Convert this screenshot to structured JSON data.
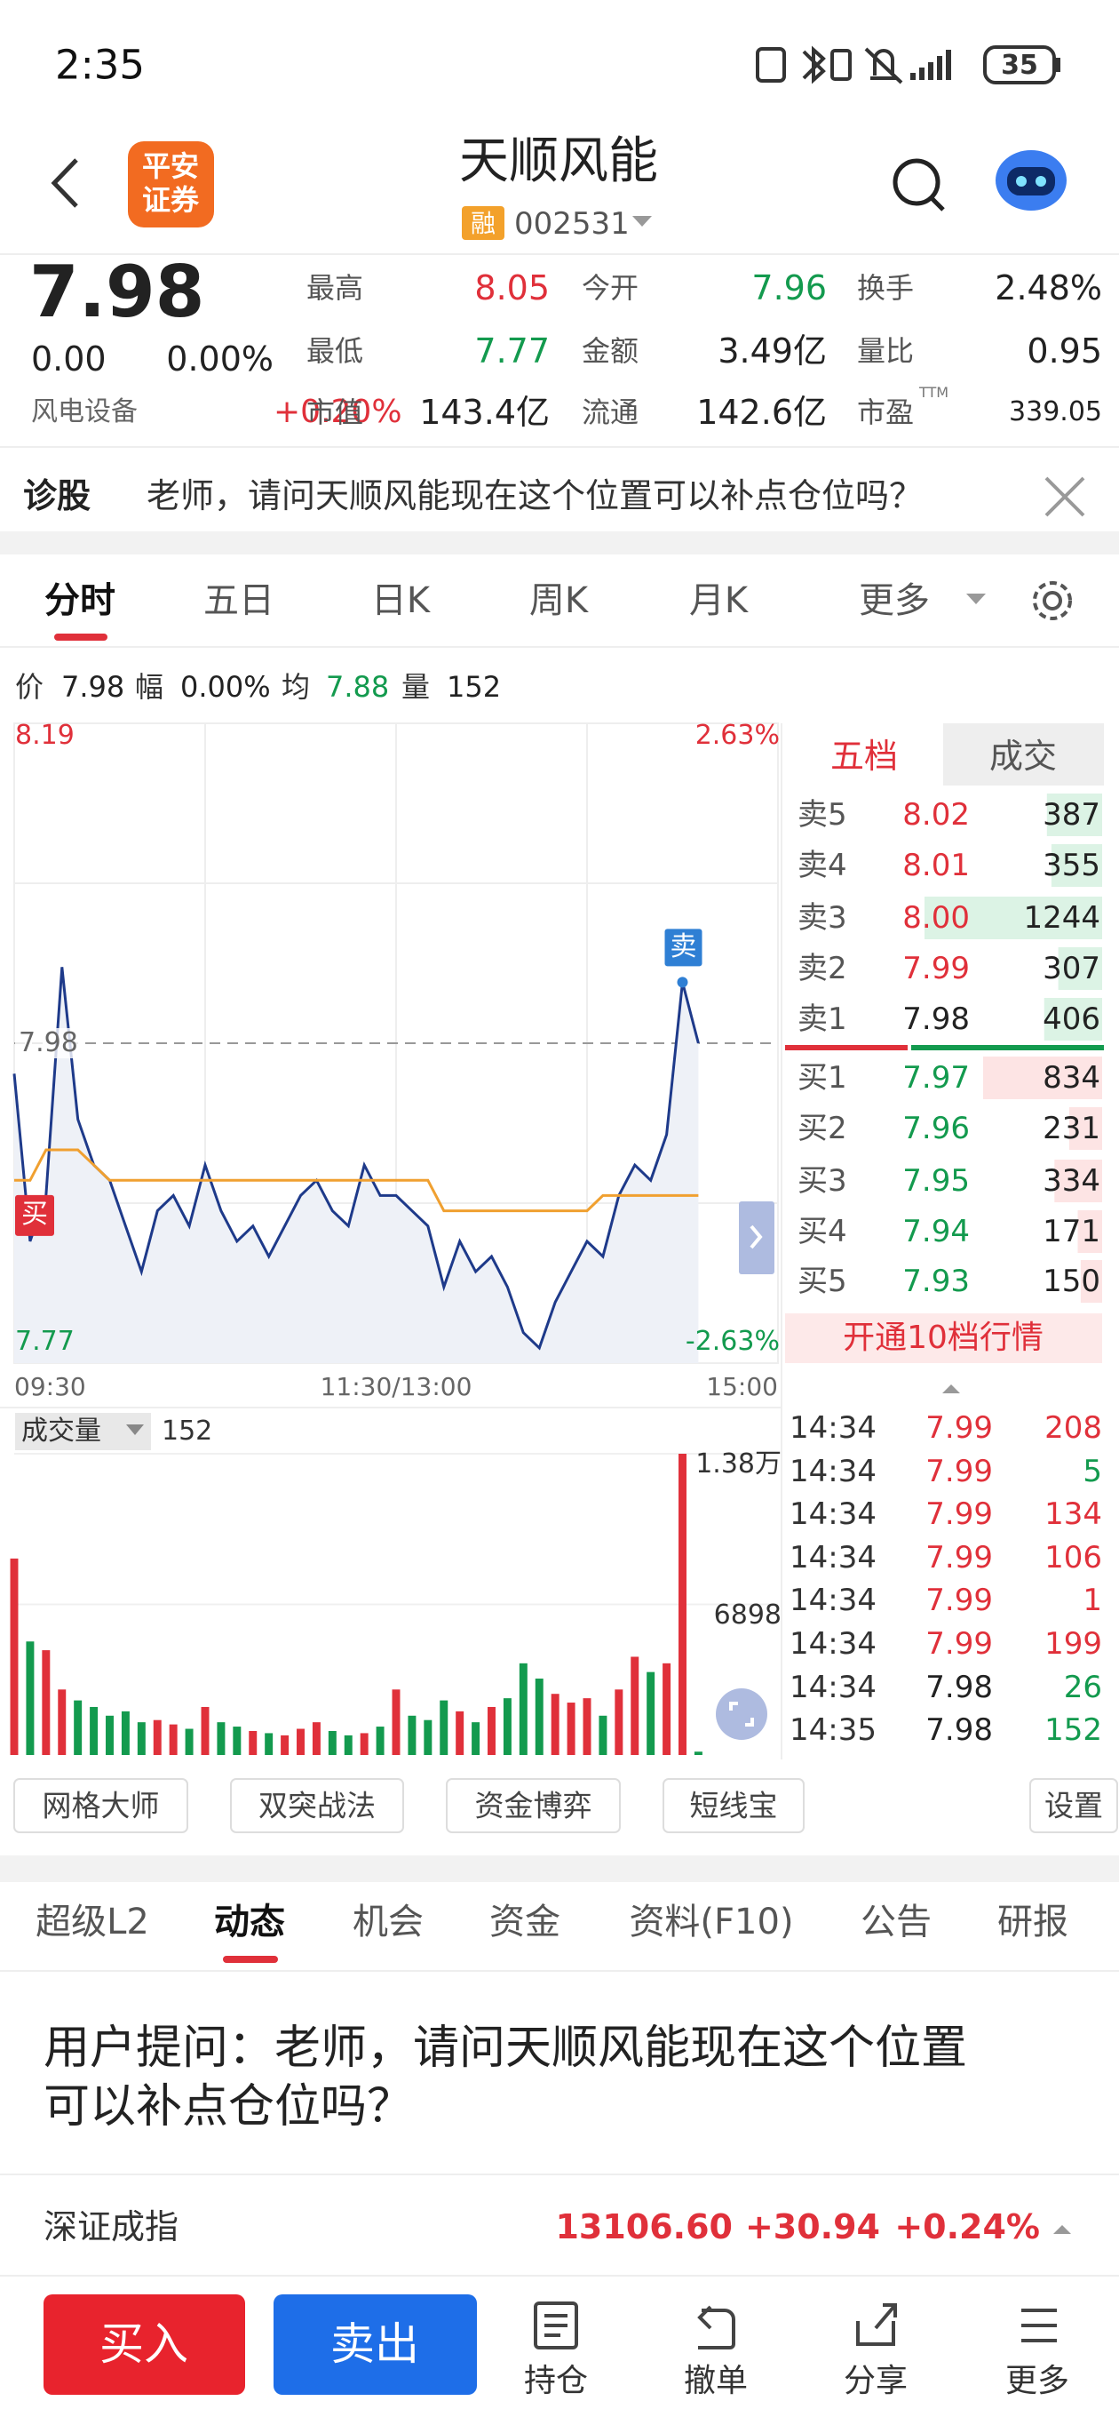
{
  "status_bar": {
    "time": "2:35",
    "battery": "35"
  },
  "header": {
    "logo_lines": [
      "平安",
      "证券"
    ],
    "title": "天顺风能",
    "badge": "融",
    "code": "002531"
  },
  "quote": {
    "price": "7.98",
    "change": "0.00",
    "change_pct": "0.00%",
    "sector": "风电设备",
    "sector_pct": "+0.20%",
    "stats": [
      {
        "label": "最高",
        "value": "8.05",
        "color": "#e0303a"
      },
      {
        "label": "今开",
        "value": "7.96",
        "color": "#139a4e"
      },
      {
        "label": "换手",
        "value": "2.48%",
        "color": "#222222"
      },
      {
        "label": "最低",
        "value": "7.77",
        "color": "#139a4e"
      },
      {
        "label": "金额",
        "value": "3.49亿",
        "color": "#222222"
      },
      {
        "label": "量比",
        "value": "0.95",
        "color": "#222222"
      },
      {
        "label": "市值",
        "value": "143.4亿",
        "color": "#222222"
      },
      {
        "label": "流通",
        "value": "142.6亿",
        "color": "#222222"
      },
      {
        "label": "市盈",
        "value": "339.05",
        "color": "#222222"
      }
    ],
    "pe_suffix": "TTM"
  },
  "diagnose": {
    "label": "诊股",
    "question": "老师，请问天顺风能现在这个位置可以补点仓位吗？"
  },
  "chart_tabs": {
    "items": [
      "分时",
      "五日",
      "日K",
      "周K",
      "月K",
      "更多"
    ],
    "active": 0
  },
  "info": {
    "items": [
      {
        "label": "价",
        "value": "7.98"
      },
      {
        "label": "幅",
        "value": "0.00%"
      },
      {
        "label": "均",
        "value": "7.88"
      },
      {
        "label": "量",
        "value": "152"
      }
    ]
  },
  "chart_data": [
    {
      "type": "line",
      "x": [
        0,
        5,
        10,
        15,
        20,
        25,
        30,
        35,
        40,
        45,
        50,
        55,
        60,
        65,
        70,
        75,
        80,
        85,
        90,
        95,
        100,
        105,
        110,
        115,
        120,
        125,
        130,
        135,
        140,
        145,
        150,
        155,
        160,
        165,
        170,
        175,
        180,
        185,
        190,
        195,
        200,
        205,
        210,
        215
      ],
      "xlim": [
        0,
        240
      ],
      "xticks": [
        {
          "value": 0,
          "label": "09:30"
        },
        {
          "value": 120,
          "label": "11:30/13:00"
        },
        {
          "value": 240,
          "label": "15:00"
        }
      ],
      "ylim": [
        7.77,
        8.19
      ],
      "yticks": [
        8.19,
        7.98,
        7.77
      ],
      "y2lim": [
        -2.63,
        2.63
      ],
      "y2ticks": [
        {
          "value": 2.63,
          "label": "2.63%"
        },
        {
          "value": -2.63,
          "label": "-2.63%"
        }
      ],
      "series": [
        {
          "color": "#1e3a8a",
          "values": [
            7.96,
            7.85,
            7.88,
            8.03,
            7.93,
            7.9,
            7.89,
            7.86,
            7.83,
            7.87,
            7.88,
            7.86,
            7.9,
            7.87,
            7.85,
            7.86,
            7.84,
            7.86,
            7.88,
            7.89,
            7.87,
            7.86,
            7.9,
            7.88,
            7.88,
            7.87,
            7.86,
            7.82,
            7.85,
            7.83,
            7.84,
            7.82,
            7.79,
            7.78,
            7.81,
            7.83,
            7.85,
            7.84,
            7.88,
            7.9,
            7.89,
            7.92,
            8.02,
            7.98
          ]
        },
        {
          "color": "#f0a030",
          "values": [
            7.89,
            7.89,
            7.91,
            7.91,
            7.91,
            7.9,
            7.89,
            7.89,
            7.89,
            7.89,
            7.89,
            7.89,
            7.89,
            7.89,
            7.89,
            7.89,
            7.89,
            7.89,
            7.89,
            7.89,
            7.89,
            7.89,
            7.89,
            7.89,
            7.89,
            7.89,
            7.89,
            7.87,
            7.87,
            7.87,
            7.87,
            7.87,
            7.87,
            7.87,
            7.87,
            7.87,
            7.87,
            7.88,
            7.88,
            7.88,
            7.88,
            7.88,
            7.88,
            7.88
          ]
        }
      ],
      "buy_marker": "买",
      "sell_marker": "卖"
    },
    {
      "type": "bar",
      "title": "成交量",
      "current": 152,
      "x": [
        0,
        5,
        10,
        15,
        20,
        25,
        30,
        35,
        40,
        45,
        50,
        55,
        60,
        65,
        70,
        75,
        80,
        85,
        90,
        95,
        100,
        105,
        110,
        115,
        120,
        125,
        130,
        135,
        140,
        145,
        150,
        155,
        160,
        165,
        170,
        175,
        180,
        185,
        190,
        195,
        200,
        205,
        210,
        215
      ],
      "xlim": [
        0,
        240
      ],
      "values": [
        9000,
        5200,
        4800,
        3000,
        2500,
        2200,
        1800,
        2000,
        1500,
        1600,
        1400,
        1200,
        2200,
        1500,
        1300,
        1100,
        1000,
        900,
        1200,
        1500,
        1100,
        900,
        1000,
        1300,
        3000,
        1800,
        1600,
        2500,
        2000,
        1500,
        2200,
        2600,
        4200,
        3500,
        2800,
        2400,
        2600,
        1800,
        3000,
        4500,
        3800,
        4200,
        13800,
        152
      ],
      "ylim": [
        0,
        13800
      ],
      "yticks": [
        {
          "value": 13800,
          "label": "1.38万"
        },
        6898
      ],
      "up_color": "#e0303a",
      "down_color": "#139a4e"
    }
  ],
  "order_book": {
    "tabs": [
      "五档",
      "成交"
    ],
    "asks": [
      {
        "label": "卖5",
        "price": "8.02",
        "volume": 387,
        "color": "#e0303a"
      },
      {
        "label": "卖4",
        "price": "8.01",
        "volume": 355,
        "color": "#e0303a"
      },
      {
        "label": "卖3",
        "price": "8.00",
        "volume": 1244,
        "color": "#e0303a"
      },
      {
        "label": "卖2",
        "price": "7.99",
        "volume": 307,
        "color": "#e0303a"
      },
      {
        "label": "卖1",
        "price": "7.98",
        "volume": 406,
        "color": "#222222"
      }
    ],
    "bids": [
      {
        "label": "买1",
        "price": "7.97",
        "volume": 834,
        "color": "#139a4e"
      },
      {
        "label": "买2",
        "price": "7.96",
        "volume": 231,
        "color": "#139a4e"
      },
      {
        "label": "买3",
        "price": "7.95",
        "volume": 334,
        "color": "#139a4e"
      },
      {
        "label": "买4",
        "price": "7.94",
        "volume": 171,
        "color": "#139a4e"
      },
      {
        "label": "买5",
        "price": "7.93",
        "volume": 150,
        "color": "#139a4e"
      }
    ],
    "upgrade": "开通10档行情"
  },
  "trades": [
    {
      "time": "14:34",
      "price": "7.99",
      "volume": 208,
      "price_color": "#e0303a",
      "color": "#e0303a"
    },
    {
      "time": "14:34",
      "price": "7.99",
      "volume": 5,
      "price_color": "#e0303a",
      "color": "#139a4e"
    },
    {
      "time": "14:34",
      "price": "7.99",
      "volume": 134,
      "price_color": "#e0303a",
      "color": "#e0303a"
    },
    {
      "time": "14:34",
      "price": "7.99",
      "volume": 106,
      "price_color": "#e0303a",
      "color": "#e0303a"
    },
    {
      "time": "14:34",
      "price": "7.99",
      "volume": 1,
      "price_color": "#e0303a",
      "color": "#e0303a"
    },
    {
      "time": "14:34",
      "price": "7.99",
      "volume": 199,
      "price_color": "#e0303a",
      "color": "#e0303a"
    },
    {
      "time": "14:34",
      "price": "7.98",
      "volume": 26,
      "price_color": "#222222",
      "color": "#139a4e"
    },
    {
      "time": "14:35",
      "price": "7.98",
      "volume": 152,
      "price_color": "#222222",
      "color": "#139a4e"
    }
  ],
  "tools": [
    "网格大师",
    "双突战法",
    "资金博弈",
    "短线宝"
  ],
  "settings": "设置",
  "content_tabs": {
    "items": [
      "超级L2",
      "动态",
      "机会",
      "资金",
      "资料(F10)",
      "公告",
      "研报"
    ],
    "active": 1
  },
  "post": {
    "text": "用户提问：老师，请问天顺风能现在这个位置可以补点仓位吗？"
  },
  "index": {
    "name": "深证成指",
    "value": "13106.60",
    "change": "+30.94",
    "change_pct": "+0.24%"
  },
  "bottom": {
    "buy": "买入",
    "sell": "卖出",
    "items": [
      "持仓",
      "撤单",
      "分享",
      "更多"
    ]
  }
}
